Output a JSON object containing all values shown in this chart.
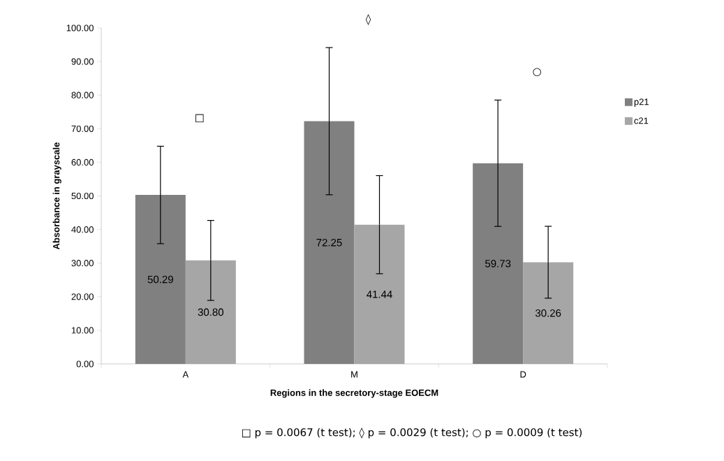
{
  "chart_data": {
    "type": "bar",
    "xlabel": "Regions in the secretory-stage EOECM",
    "ylabel": "Absorbance in grayscale",
    "categories": [
      "A",
      "M",
      "D"
    ],
    "series": [
      {
        "name": "p21",
        "color": "#808080",
        "values": [
          50.29,
          72.25,
          59.73
        ],
        "value_labels": [
          "50.29",
          "72.25",
          "59.73"
        ],
        "errors": [
          14.5,
          21.9,
          18.8
        ]
      },
      {
        "name": "c21",
        "color": "#a6a6a6",
        "values": [
          30.8,
          41.44,
          30.26
        ],
        "value_labels": [
          "30.80",
          "41.44",
          "30.26"
        ],
        "errors": [
          11.9,
          14.6,
          10.7
        ]
      }
    ],
    "ylim": [
      0,
      100
    ],
    "yticks": [
      {
        "value": 0,
        "label": "0.00"
      },
      {
        "value": 10,
        "label": "10.00"
      },
      {
        "value": 20,
        "label": "20.00"
      },
      {
        "value": 30,
        "label": "30.00"
      },
      {
        "value": 40,
        "label": "40.00"
      },
      {
        "value": 50,
        "label": "50.00"
      },
      {
        "value": 60,
        "label": "60.00"
      },
      {
        "value": 70,
        "label": "70.00"
      },
      {
        "value": 80,
        "label": "80.00"
      },
      {
        "value": 90,
        "label": "90.00"
      },
      {
        "value": 100,
        "label": "100.00"
      }
    ],
    "legend": "right",
    "annotations": [
      "□",
      "◊",
      "○",
      "□ p = 0.0067 (t test); ◊ p = 0.0029 (t test); ○ p = 0.0009 (t test)"
    ]
  }
}
